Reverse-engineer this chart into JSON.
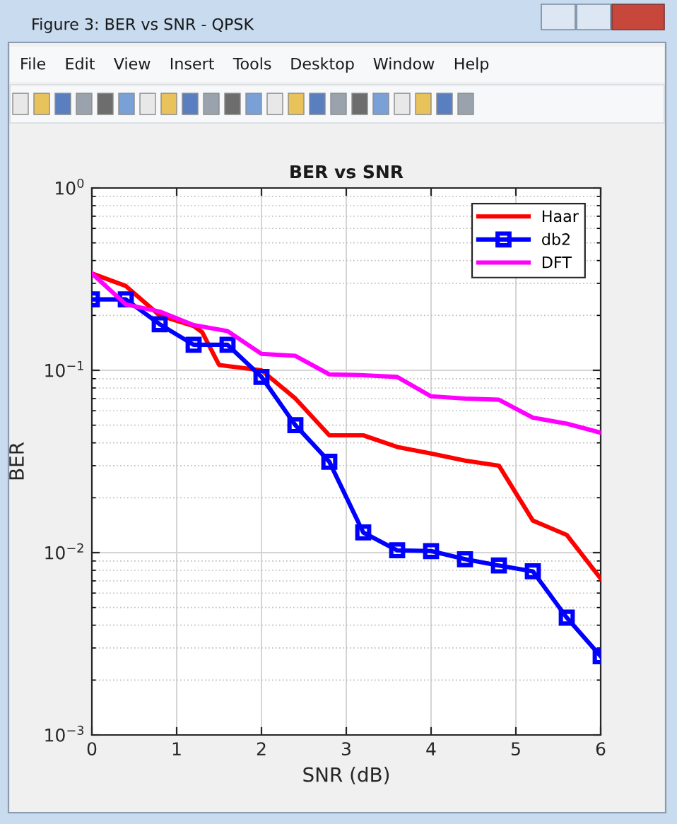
{
  "chart_data": {
    "type": "line",
    "title": "BER vs SNR",
    "xlabel": "SNR (dB)",
    "ylabel": "BER",
    "x": [
      0,
      0.4,
      0.8,
      1.2,
      1.6,
      2.0,
      2.4,
      2.8,
      3.2,
      3.6,
      4.0,
      4.4,
      4.8,
      5.2,
      5.6,
      6.0
    ],
    "series": [
      {
        "name": "Haar",
        "color": "#ff0000",
        "x": [
          0,
          0.4,
          0.8,
          1.2,
          1.3,
          1.5,
          2.0,
          2.4,
          2.8,
          3.2,
          3.6,
          4.0,
          4.4,
          4.8,
          5.2,
          5.6,
          6.0
        ],
        "values": [
          0.34,
          0.29,
          0.2,
          0.175,
          0.162,
          0.107,
          0.1,
          0.07,
          0.044,
          0.044,
          0.038,
          0.035,
          0.032,
          0.03,
          0.015,
          0.0125,
          0.0072
        ]
      },
      {
        "name": "db2",
        "color": "#0000ff",
        "marker": "square",
        "values": [
          0.245,
          0.245,
          0.179,
          0.138,
          0.138,
          0.092,
          0.05,
          0.0315,
          0.0129,
          0.0103,
          0.0102,
          0.0092,
          0.0085,
          0.0079,
          0.0044,
          0.0027
        ]
      },
      {
        "name": "DFT",
        "color": "#ff00ff",
        "values": [
          0.34,
          0.23,
          0.21,
          0.177,
          0.164,
          0.123,
          0.12,
          0.095,
          0.094,
          0.092,
          0.072,
          0.07,
          0.069,
          0.055,
          0.051,
          0.0455
        ]
      }
    ],
    "xlim": [
      0,
      6
    ],
    "xticks": [
      0,
      1,
      2,
      3,
      4,
      5,
      6
    ],
    "ylim": [
      0.001,
      1
    ],
    "yticks": [
      {
        "value": 0.001,
        "label": "10$^{−3}$"
      },
      {
        "value": 0.01,
        "label": "10$^{−2}$"
      },
      {
        "value": 0.1,
        "label": "10$^{−1}$"
      },
      {
        "value": 1,
        "label": "10$^{0}$"
      }
    ],
    "log": "y",
    "grid": true,
    "legend": "top right",
    "line_style": "solid",
    "annotations": [
      "Figure 3: BER vs SNR - QPSK",
      "File",
      "Edit",
      "View",
      "Insert",
      "Tools",
      "Desktop",
      "Window",
      "Help"
    ]
  }
}
